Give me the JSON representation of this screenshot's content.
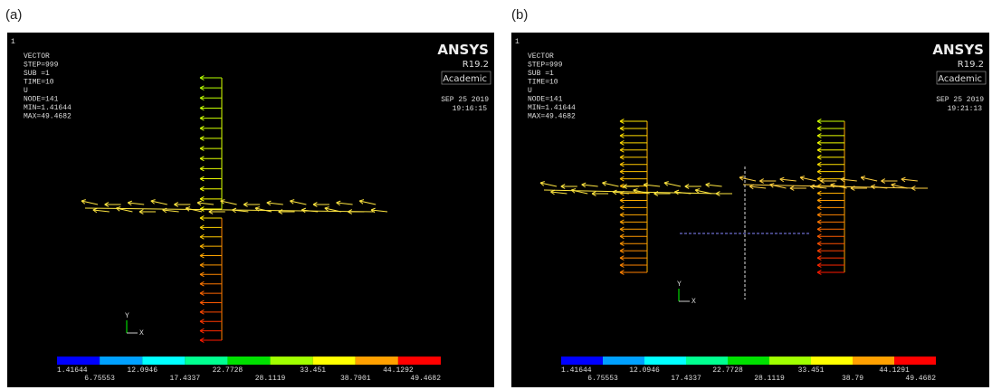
{
  "panels": [
    {
      "label": "(a)",
      "window": "1",
      "info": [
        "VECTOR",
        "STEP=999",
        "SUB =1",
        "TIME=10",
        "U",
        "NODE=141",
        "MIN=1.41644",
        "MAX=49.4682"
      ],
      "brand": "ANSYS",
      "version": "R19.2",
      "license": "Academic",
      "date": "SEP 25 2019",
      "time": "19:16:15",
      "axis_y": "Y",
      "axis_x": "X",
      "legend_top": [
        "1.41644",
        "12.0946",
        "22.7728",
        "33.451",
        "44.1292"
      ],
      "legend_bottom": [
        "6.75553",
        "17.4337",
        "28.1119",
        "38.7901",
        "49.4682"
      ]
    },
    {
      "label": "(b)",
      "window": "1",
      "info": [
        "VECTOR",
        "STEP=999",
        "SUB =1",
        "TIME=10",
        "U",
        "NODE=141",
        "MIN=1.41644",
        "MAX=49.4682"
      ],
      "brand": "ANSYS",
      "version": "R19.2",
      "license": "Academic",
      "date": "SEP 25 2019",
      "time": "19:21:13",
      "axis_y": "Y",
      "axis_x": "X",
      "legend_top": [
        "1.41644",
        "12.0946",
        "22.7728",
        "33.451",
        "44.1291"
      ],
      "legend_bottom": [
        "6.75553",
        "17.4337",
        "28.1119",
        "38.79",
        "49.4682"
      ]
    }
  ],
  "colorbar_colors": [
    "#0000ff",
    "#00a0ff",
    "#00ffff",
    "#00ff90",
    "#00e000",
    "#a0ff00",
    "#ffff00",
    "#ffa000",
    "#ff0000"
  ]
}
